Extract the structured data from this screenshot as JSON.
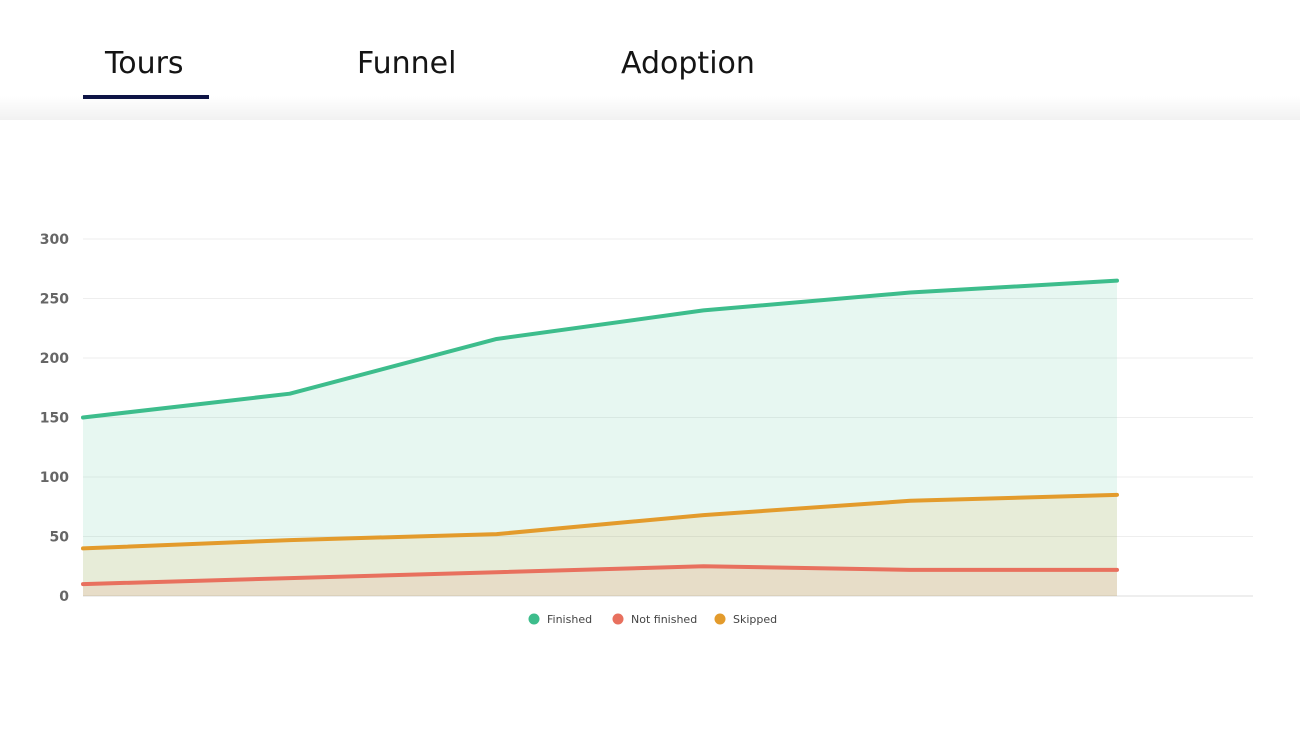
{
  "tabs": [
    {
      "label": "Tours",
      "active": true
    },
    {
      "label": "Funnel",
      "active": false
    },
    {
      "label": "Adoption",
      "active": false
    }
  ],
  "colors": {
    "finished": "#3dbd8c",
    "not_finished": "#e8705e",
    "skipped": "#e39b2c",
    "active_tab_underline": "#0e1445"
  },
  "chart_data": {
    "type": "area",
    "x": [
      0,
      1,
      2,
      3,
      4,
      5
    ],
    "ylim": [
      0,
      300
    ],
    "yticks": [
      "0",
      "50",
      "100",
      "150",
      "200",
      "250",
      "300"
    ],
    "grid": true,
    "legend_position": "bottom-center",
    "series": [
      {
        "name": "Finished",
        "color": "#3dbd8c",
        "values": [
          150,
          170,
          216,
          240,
          255,
          265
        ]
      },
      {
        "name": "Not finished",
        "color": "#e8705e",
        "values": [
          10,
          15,
          20,
          25,
          22,
          22
        ]
      },
      {
        "name": "Skipped",
        "color": "#e39b2c",
        "values": [
          40,
          47,
          52,
          68,
          80,
          85
        ]
      }
    ]
  }
}
